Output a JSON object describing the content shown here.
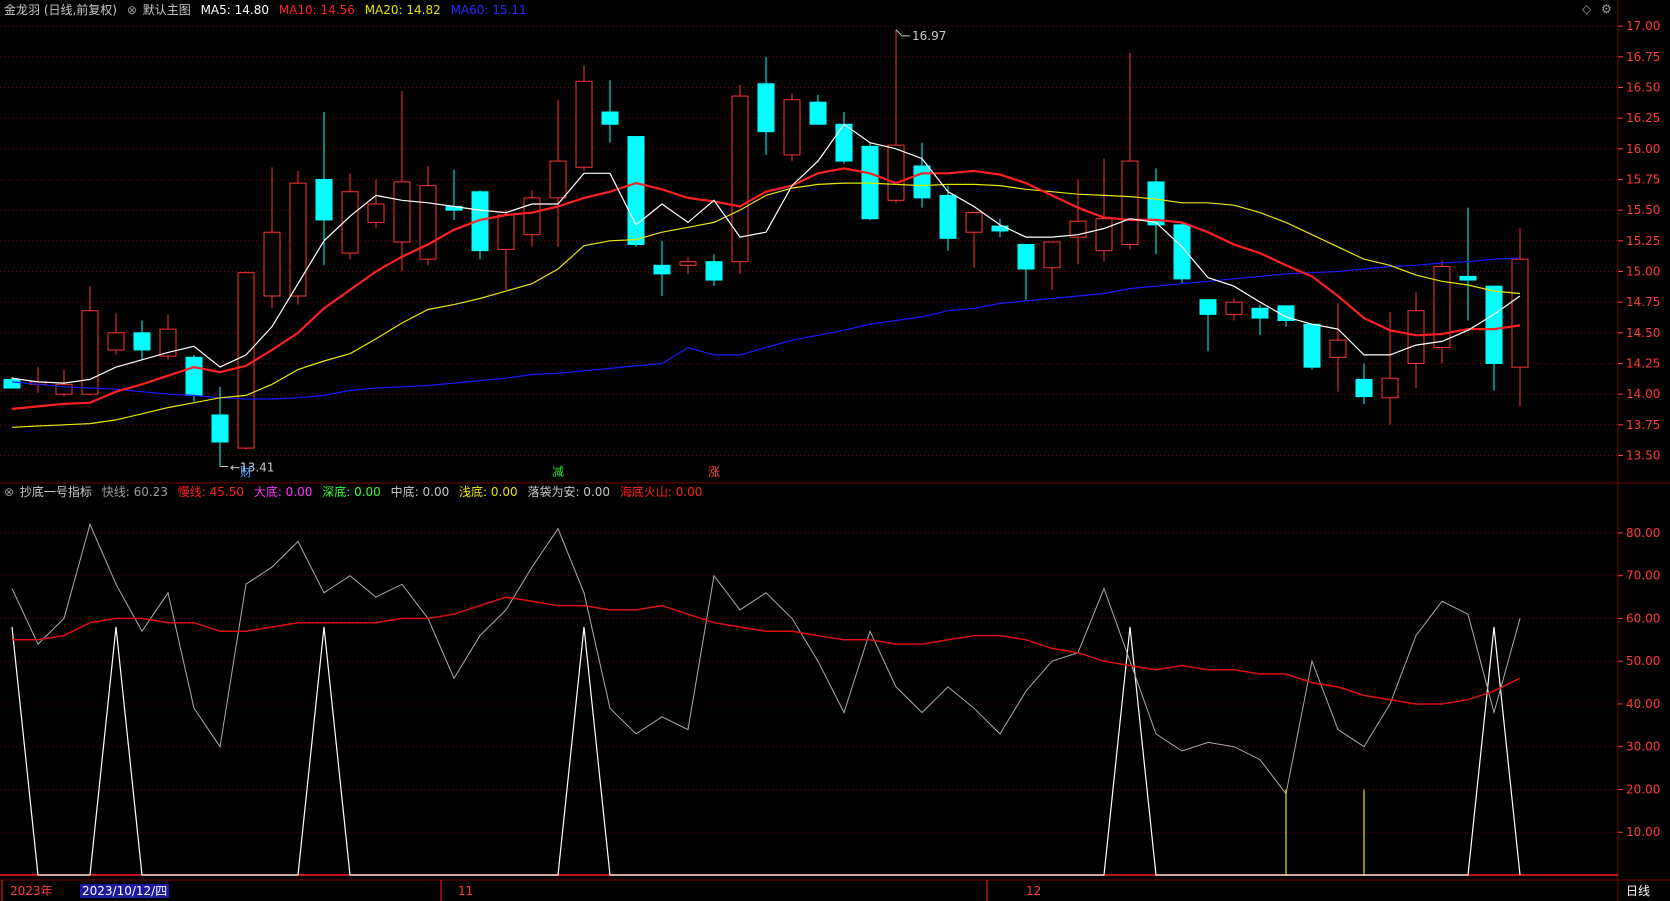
{
  "header": {
    "stock_label": "金龙羽 (日线,前复权)",
    "template_label": "默认主图",
    "ma5": "MA5: 14.80",
    "ma10": "MA10: 14.56",
    "ma20": "MA20: 14.82",
    "ma60": "MA60: 15.11"
  },
  "indicator_header": {
    "name": "抄底一号指标",
    "fast": "快线: 60.23",
    "slow": "慢线: 45.50",
    "big_bottom": "大底: 0.00",
    "deep_bottom": "深底: 0.00",
    "mid_bottom": "中底: 0.00",
    "shallow_bottom": "浅底: 0.00",
    "safe": "落袋为安: 0.00",
    "volcano": "海底火山: 0.00"
  },
  "footer": {
    "year_label": "2023年",
    "date_label": "2023/10/12/四",
    "month_nov": "11",
    "month_dec": "12",
    "period_label": "日线"
  },
  "colors": {
    "up": "#ff3232",
    "down": "#00ffff",
    "ma5": "#ffffff",
    "ma10": "#ff2020",
    "ma20": "#e6e600",
    "ma60": "#1a1aff",
    "grid": "#7a0000",
    "axis_text": "#ff3a3a",
    "fast": "#aaaaaa",
    "slow": "#dd1111",
    "big_bottom": "#ffffff",
    "shallow_bottom": "#e6e600",
    "caption": "#c8c8c8"
  },
  "chart_data": [
    {
      "type": "candlestick",
      "yrange": [
        13.3,
        17.05
      ],
      "ticks": [
        "17.00",
        "16.75",
        "16.50",
        "16.25",
        "16.00",
        "15.75",
        "15.50",
        "15.25",
        "15.00",
        "14.75",
        "14.50",
        "14.25",
        "14.00",
        "13.75",
        "13.50"
      ],
      "high_label": "16.97",
      "low_label": "13.41",
      "markers": [
        {
          "index": 9,
          "text": "财",
          "color": "#4da6ff"
        },
        {
          "index": 21,
          "text": "减",
          "color": "#33dd33"
        },
        {
          "index": 27,
          "text": "涨",
          "color": "#ff4444"
        }
      ],
      "candles": [
        [
          14.12,
          14.14,
          14.05,
          14.06
        ],
        [
          14.08,
          14.22,
          14.1,
          14.01
        ],
        [
          14.0,
          14.2,
          14.08,
          13.98
        ],
        [
          14.0,
          14.88,
          14.68,
          13.99
        ],
        [
          14.36,
          14.66,
          14.5,
          14.32
        ],
        [
          14.5,
          14.6,
          14.36,
          14.28
        ],
        [
          14.31,
          14.65,
          14.53,
          14.28
        ],
        [
          14.3,
          14.32,
          13.99,
          13.94
        ],
        [
          13.83,
          14.06,
          13.61,
          13.41
        ],
        [
          13.56,
          15.0,
          14.99,
          13.55
        ],
        [
          14.8,
          15.85,
          15.32,
          14.7
        ],
        [
          14.8,
          15.82,
          15.72,
          14.73
        ],
        [
          15.75,
          16.3,
          15.42,
          15.05
        ],
        [
          15.15,
          15.8,
          15.65,
          15.1
        ],
        [
          15.4,
          15.75,
          15.55,
          15.35
        ],
        [
          15.24,
          16.47,
          15.73,
          15.0
        ],
        [
          15.1,
          15.86,
          15.7,
          15.05
        ],
        [
          15.53,
          15.83,
          15.5,
          15.42
        ],
        [
          15.65,
          15.66,
          15.17,
          15.1
        ],
        [
          15.18,
          15.5,
          15.46,
          14.85
        ],
        [
          15.3,
          15.66,
          15.6,
          15.2
        ],
        [
          15.6,
          16.4,
          15.9,
          15.2
        ],
        [
          15.85,
          16.68,
          16.55,
          15.82
        ],
        [
          16.3,
          16.56,
          16.2,
          16.05
        ],
        [
          16.1,
          16.1,
          15.22,
          15.2
        ],
        [
          15.05,
          15.25,
          14.98,
          14.8
        ],
        [
          15.05,
          15.12,
          15.08,
          14.98
        ],
        [
          15.08,
          15.14,
          14.93,
          14.88
        ],
        [
          15.08,
          16.52,
          16.43,
          14.98
        ],
        [
          16.53,
          16.75,
          16.14,
          15.95
        ],
        [
          15.95,
          16.45,
          16.4,
          15.9
        ],
        [
          16.38,
          16.44,
          16.2,
          16.2
        ],
        [
          16.2,
          16.3,
          15.9,
          15.88
        ],
        [
          16.02,
          16.05,
          15.43,
          15.42
        ],
        [
          15.58,
          16.97,
          16.03,
          15.56
        ],
        [
          15.86,
          16.05,
          15.6,
          15.52
        ],
        [
          15.62,
          15.7,
          15.27,
          15.17
        ],
        [
          15.32,
          15.45,
          15.48,
          15.03
        ],
        [
          15.37,
          15.43,
          15.33,
          15.28
        ],
        [
          15.22,
          15.2,
          15.02,
          14.77
        ],
        [
          15.03,
          15.21,
          15.24,
          14.85
        ],
        [
          15.28,
          15.75,
          15.41,
          15.06
        ],
        [
          15.17,
          15.92,
          15.43,
          15.08
        ],
        [
          15.22,
          16.78,
          15.9,
          15.18
        ],
        [
          15.73,
          15.84,
          15.38,
          15.14
        ],
        [
          15.38,
          15.4,
          14.94,
          14.9
        ],
        [
          14.77,
          14.77,
          14.65,
          14.35
        ],
        [
          14.65,
          14.78,
          14.75,
          14.6
        ],
        [
          14.7,
          14.73,
          14.62,
          14.48
        ],
        [
          14.72,
          14.72,
          14.6,
          14.55
        ],
        [
          14.57,
          14.56,
          14.22,
          14.2
        ],
        [
          14.3,
          14.74,
          14.44,
          14.02
        ],
        [
          14.12,
          14.25,
          13.98,
          13.92
        ],
        [
          13.97,
          14.67,
          14.13,
          13.75
        ],
        [
          14.25,
          14.83,
          14.68,
          14.05
        ],
        [
          14.38,
          15.09,
          15.04,
          14.25
        ],
        [
          14.96,
          15.52,
          14.93,
          14.6
        ],
        [
          14.88,
          14.88,
          14.25,
          14.03
        ],
        [
          14.22,
          15.35,
          15.1,
          13.9
        ]
      ],
      "ma5": [
        14.13,
        14.1,
        14.09,
        14.12,
        14.22,
        14.28,
        14.34,
        14.39,
        14.22,
        14.32,
        14.55,
        14.9,
        15.25,
        15.45,
        15.62,
        15.58,
        15.56,
        15.53,
        15.5,
        15.48,
        15.55,
        15.55,
        15.8,
        15.8,
        15.38,
        15.55,
        15.4,
        15.58,
        15.28,
        15.32,
        15.7,
        15.9,
        16.2,
        16.05,
        16.0,
        15.92,
        15.65,
        15.53,
        15.38,
        15.28,
        15.28,
        15.3,
        15.35,
        15.43,
        15.4,
        15.2,
        14.95,
        14.88,
        14.75,
        14.63,
        14.57,
        14.53,
        14.32,
        14.32,
        14.4,
        14.43,
        14.52,
        14.65,
        14.8
      ],
      "ma10": [
        13.88,
        13.9,
        13.92,
        13.93,
        14.02,
        14.08,
        14.15,
        14.22,
        14.18,
        14.23,
        14.36,
        14.5,
        14.7,
        14.85,
        15.0,
        15.12,
        15.22,
        15.34,
        15.42,
        15.46,
        15.48,
        15.53,
        15.6,
        15.65,
        15.72,
        15.67,
        15.6,
        15.57,
        15.53,
        15.65,
        15.7,
        15.8,
        15.84,
        15.8,
        15.72,
        15.8,
        15.8,
        15.82,
        15.79,
        15.72,
        15.62,
        15.52,
        15.44,
        15.42,
        15.42,
        15.4,
        15.32,
        15.22,
        15.15,
        15.05,
        14.96,
        14.8,
        14.62,
        14.52,
        14.48,
        14.49,
        14.53,
        14.53,
        14.56
      ],
      "ma20": [
        13.73,
        13.74,
        13.75,
        13.76,
        13.79,
        13.84,
        13.89,
        13.93,
        13.97,
        13.99,
        14.08,
        14.2,
        14.27,
        14.33,
        14.45,
        14.58,
        14.69,
        14.73,
        14.78,
        14.84,
        14.9,
        15.02,
        15.21,
        15.25,
        15.26,
        15.32,
        15.36,
        15.4,
        15.5,
        15.62,
        15.68,
        15.71,
        15.72,
        15.72,
        15.71,
        15.7,
        15.71,
        15.71,
        15.7,
        15.67,
        15.65,
        15.63,
        15.62,
        15.61,
        15.59,
        15.56,
        15.56,
        15.54,
        15.48,
        15.4,
        15.3,
        15.2,
        15.1,
        15.05,
        14.97,
        14.92,
        14.89,
        14.84,
        14.82
      ],
      "ma60": [
        14.1,
        14.08,
        14.06,
        14.05,
        14.04,
        14.02,
        14.0,
        13.99,
        13.97,
        13.96,
        13.96,
        13.97,
        13.99,
        14.03,
        14.05,
        14.06,
        14.07,
        14.09,
        14.11,
        14.13,
        14.16,
        14.17,
        14.19,
        14.21,
        14.23,
        14.25,
        14.38,
        14.32,
        14.32,
        14.38,
        14.44,
        14.48,
        14.52,
        14.57,
        14.6,
        14.63,
        14.68,
        14.7,
        14.74,
        14.76,
        14.78,
        14.8,
        14.82,
        14.86,
        14.88,
        14.9,
        14.92,
        14.94,
        14.96,
        14.98,
        14.99,
        15.0,
        15.02,
        15.04,
        15.05,
        15.07,
        15.08,
        15.1,
        15.11
      ]
    },
    {
      "type": "line",
      "yrange": [
        0,
        87
      ],
      "ticks": [
        "80.00",
        "70.00",
        "60.00",
        "50.00",
        "40.00",
        "30.00",
        "20.00",
        "10.00"
      ],
      "fast": [
        67,
        54,
        60,
        82,
        68,
        57,
        66,
        39,
        30,
        68,
        72,
        78,
        66,
        70,
        65,
        68,
        60,
        46,
        56,
        62,
        72,
        81,
        66,
        39,
        33,
        37,
        34,
        70,
        62,
        66,
        60,
        50,
        38,
        57,
        44,
        38,
        44,
        39,
        33,
        43,
        50,
        52,
        67,
        50,
        33,
        29,
        31,
        30,
        27,
        19,
        50,
        34,
        30,
        40,
        56,
        64,
        61,
        38,
        60
      ],
      "slow": [
        55,
        55,
        56,
        59,
        60,
        60,
        59,
        59,
        57,
        57,
        58,
        59,
        59,
        59,
        59,
        60,
        60,
        61,
        63,
        65,
        64,
        63,
        63,
        62,
        62,
        63,
        61,
        59,
        58,
        57,
        57,
        56,
        55,
        55,
        54,
        54,
        55,
        56,
        56,
        55,
        53,
        52,
        50,
        49,
        48,
        49,
        48,
        48,
        47,
        47,
        45,
        44,
        42,
        41,
        40,
        40,
        41,
        43,
        46
      ],
      "big_bottom": [
        58,
        0,
        0,
        0,
        58,
        0,
        0,
        0,
        0,
        0,
        0,
        0,
        58,
        0,
        0,
        0,
        0,
        0,
        0,
        0,
        0,
        0,
        58,
        0,
        0,
        0,
        0,
        0,
        0,
        0,
        0,
        0,
        0,
        0,
        0,
        0,
        0,
        0,
        0,
        0,
        0,
        0,
        0,
        58,
        0,
        0,
        0,
        0,
        0,
        0,
        0,
        0,
        0,
        0,
        0,
        0,
        0,
        58,
        0
      ],
      "shallow_bottom_spikes": [
        {
          "index": 49,
          "value": 20
        },
        {
          "index": 52,
          "value": 20
        }
      ]
    }
  ]
}
